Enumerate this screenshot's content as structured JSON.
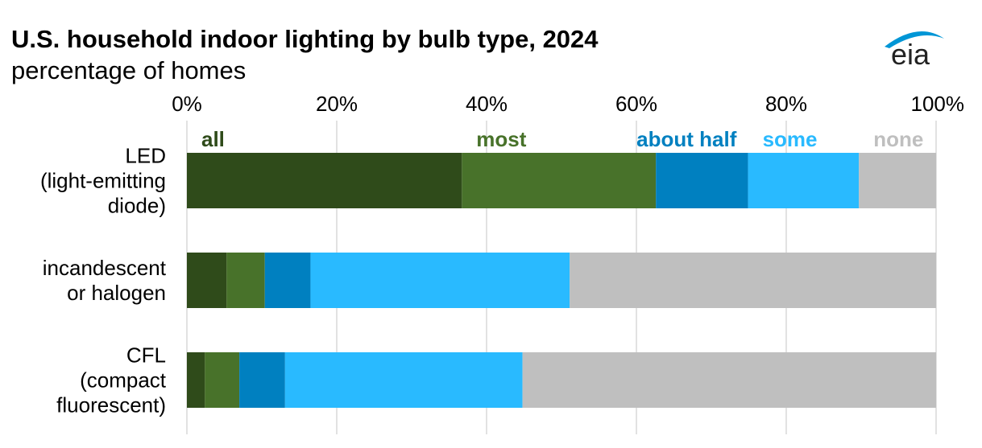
{
  "title": "U.S. household indoor lighting by bulb type, 2024",
  "subtitle": "percentage of homes",
  "logo": {
    "text": "eia",
    "colors": {
      "text": "#333333",
      "swoosh": "#0096D6"
    }
  },
  "chart_data": {
    "type": "bar",
    "orientation": "horizontal",
    "stacked": true,
    "xlim": [
      0,
      100
    ],
    "x_ticks": [
      "0%",
      "20%",
      "40%",
      "60%",
      "80%",
      "100%"
    ],
    "x_tick_values": [
      0,
      20,
      40,
      60,
      80,
      100
    ],
    "x_axis_position": "top",
    "grid": true,
    "legend_position": "top, inline above first bar",
    "categories": [
      [
        "LED",
        "(light-emitting",
        "diode)"
      ],
      [
        "incandescent",
        "or halogen"
      ],
      [
        "CFL",
        "(compact",
        "fluorescent)"
      ]
    ],
    "series": [
      {
        "name": "all",
        "color": "#2F4B1A",
        "values": [
          36.7,
          5.3,
          2.4
        ]
      },
      {
        "name": "most",
        "color": "#48722A",
        "values": [
          25.9,
          5.1,
          4.6
        ]
      },
      {
        "name": "about half",
        "color": "#0080C0",
        "values": [
          12.3,
          6.1,
          6.1
        ]
      },
      {
        "name": "some",
        "color": "#29BAFF",
        "values": [
          14.8,
          34.6,
          31.7
        ]
      },
      {
        "name": "none",
        "color": "#BFBFBF",
        "values": [
          10.3,
          48.9,
          55.2
        ]
      }
    ]
  }
}
